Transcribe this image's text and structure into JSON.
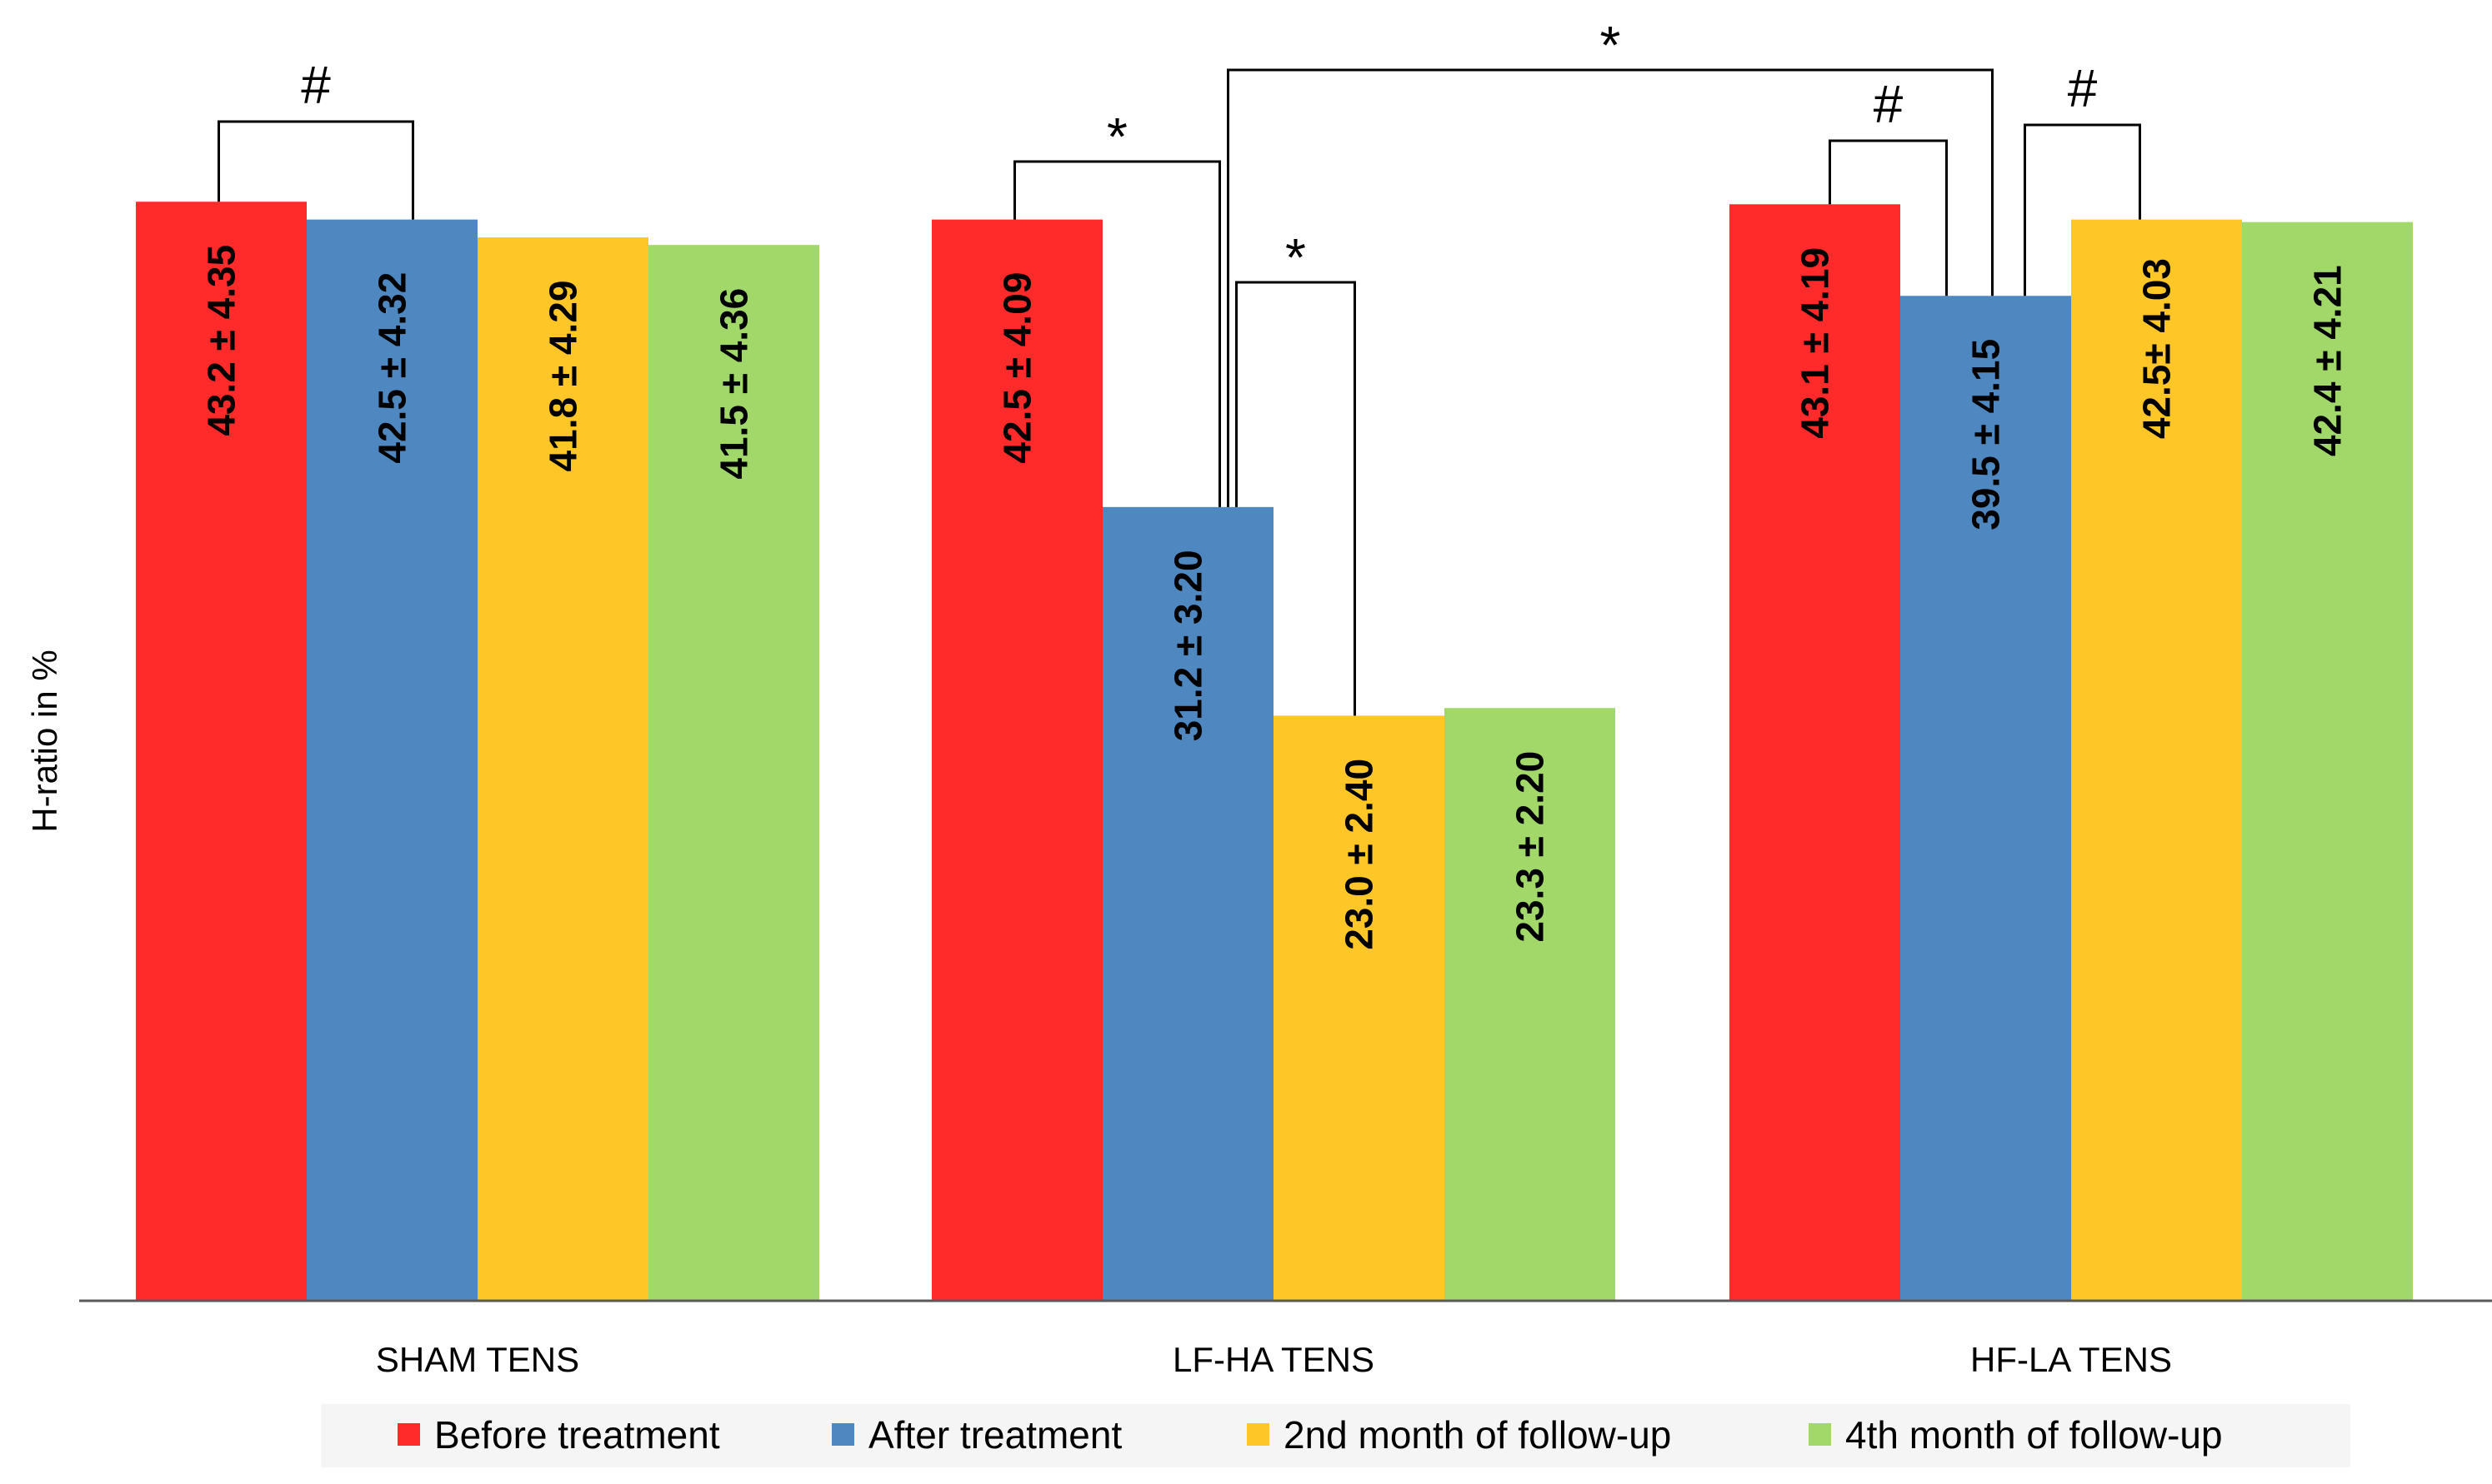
{
  "chart_data": {
    "type": "bar",
    "title": "",
    "xlabel": "",
    "ylabel": "H-ratio in %",
    "ylim": [
      0,
      50
    ],
    "grid": false,
    "legend_position": "bottom",
    "categories": [
      "SHAM TENS",
      "LF-HA TENS",
      "HF-LA TENS"
    ],
    "series": [
      {
        "name": "Before treatment",
        "color": "#FF2A2A",
        "values": [
          43.2,
          42.5,
          43.1
        ],
        "labels": [
          "43.2 ± 4.35",
          "42.5  ± 4.09",
          "43.1 ± 4.19"
        ]
      },
      {
        "name": "After treatment",
        "color": "#4F88C0",
        "values": [
          42.5,
          31.2,
          39.5
        ],
        "labels": [
          "42.5  ± 4.32",
          "31.2 ± 3.20",
          "39.5 ± 4.15"
        ]
      },
      {
        "name": "2nd month of follow-up",
        "color": "#FFC627",
        "values": [
          41.8,
          23.0,
          42.5
        ],
        "labels": [
          "41.8 ± 4.29",
          "23.0 ± 2.40",
          "42.5± 4.03"
        ]
      },
      {
        "name": "4th month of follow-up",
        "color": "#A2D86A",
        "values": [
          41.5,
          23.3,
          42.4
        ],
        "labels": [
          "41.5 ± 4.36",
          "23.3 ± 2.20",
          "42.4 ± 4.21"
        ]
      }
    ],
    "annotations": [
      {
        "mark": "#",
        "category": 0,
        "from_series": 0,
        "to_series": 1
      },
      {
        "mark": "*",
        "category": 1,
        "from_series": 0,
        "to_series": 1
      },
      {
        "mark": "*",
        "category": 1,
        "from_series": 1,
        "to_series": 2
      },
      {
        "mark": "*",
        "from_category": 1,
        "from_series": 1,
        "to_category": 2,
        "to_series": 1
      },
      {
        "mark": "#",
        "category": 2,
        "from_series": 0,
        "to_series": 1
      },
      {
        "mark": "#",
        "category": 2,
        "from_series": 1,
        "to_series": 2
      }
    ]
  }
}
